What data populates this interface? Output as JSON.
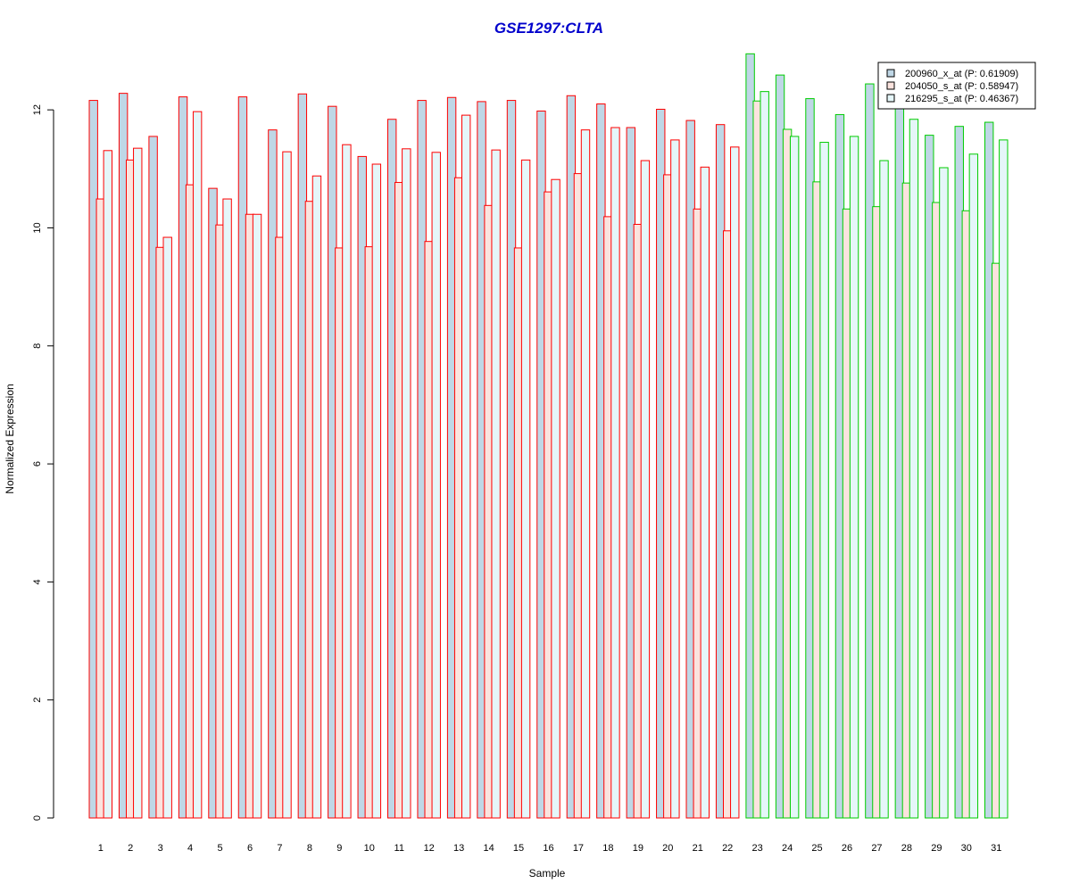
{
  "chart_data": {
    "type": "bar",
    "title": "GSE1297:CLTA",
    "xlabel": "Sample",
    "ylabel": "Normalized Expression",
    "ylim": [
      0,
      13
    ],
    "yticks": [
      0,
      2,
      4,
      6,
      8,
      10,
      12
    ],
    "grid": false,
    "legend_position": "top-right",
    "categories": [
      "1",
      "2",
      "3",
      "4",
      "5",
      "6",
      "7",
      "8",
      "9",
      "10",
      "11",
      "12",
      "13",
      "14",
      "15",
      "16",
      "17",
      "18",
      "19",
      "20",
      "21",
      "22",
      "23",
      "24",
      "25",
      "26",
      "27",
      "28",
      "29",
      "30",
      "31"
    ],
    "series": [
      {
        "name": "200960_x_at (P: 0.61909)",
        "fill": "#bfd7e6",
        "values": [
          12.16,
          12.28,
          11.55,
          12.22,
          10.67,
          12.22,
          11.66,
          12.27,
          12.06,
          11.21,
          11.84,
          12.16,
          12.21,
          12.14,
          12.16,
          11.98,
          12.24,
          12.1,
          11.7,
          12.01,
          11.82,
          11.75,
          12.95,
          12.59,
          12.19,
          11.92,
          12.44,
          12.05,
          11.57,
          11.72,
          11.79
        ]
      },
      {
        "name": "204050_s_at (P: 0.58947)",
        "fill": "#fbe3de",
        "values": [
          10.49,
          11.15,
          9.67,
          10.73,
          10.05,
          10.23,
          9.84,
          10.45,
          9.66,
          9.68,
          10.77,
          9.77,
          10.85,
          10.38,
          9.66,
          10.61,
          10.92,
          10.19,
          10.06,
          10.9,
          10.32,
          9.95,
          12.15,
          11.67,
          10.78,
          10.32,
          10.36,
          10.76,
          10.43,
          10.29,
          9.4
        ]
      },
      {
        "name": "216295_s_at (P: 0.46367)",
        "fill": "#e5f6f9",
        "values": [
          11.31,
          11.35,
          9.84,
          11.97,
          10.49,
          10.23,
          11.29,
          10.88,
          11.41,
          11.08,
          11.34,
          11.28,
          11.91,
          11.32,
          11.15,
          10.82,
          11.66,
          11.7,
          11.14,
          11.49,
          11.03,
          11.37,
          12.31,
          11.55,
          11.45,
          11.55,
          11.14,
          11.84,
          11.02,
          11.25,
          11.49
        ]
      }
    ],
    "group_borders": [
      {
        "from": "1",
        "to": "22",
        "color": "#ff0000"
      },
      {
        "from": "23",
        "to": "31",
        "color": "#00cc00"
      }
    ]
  }
}
